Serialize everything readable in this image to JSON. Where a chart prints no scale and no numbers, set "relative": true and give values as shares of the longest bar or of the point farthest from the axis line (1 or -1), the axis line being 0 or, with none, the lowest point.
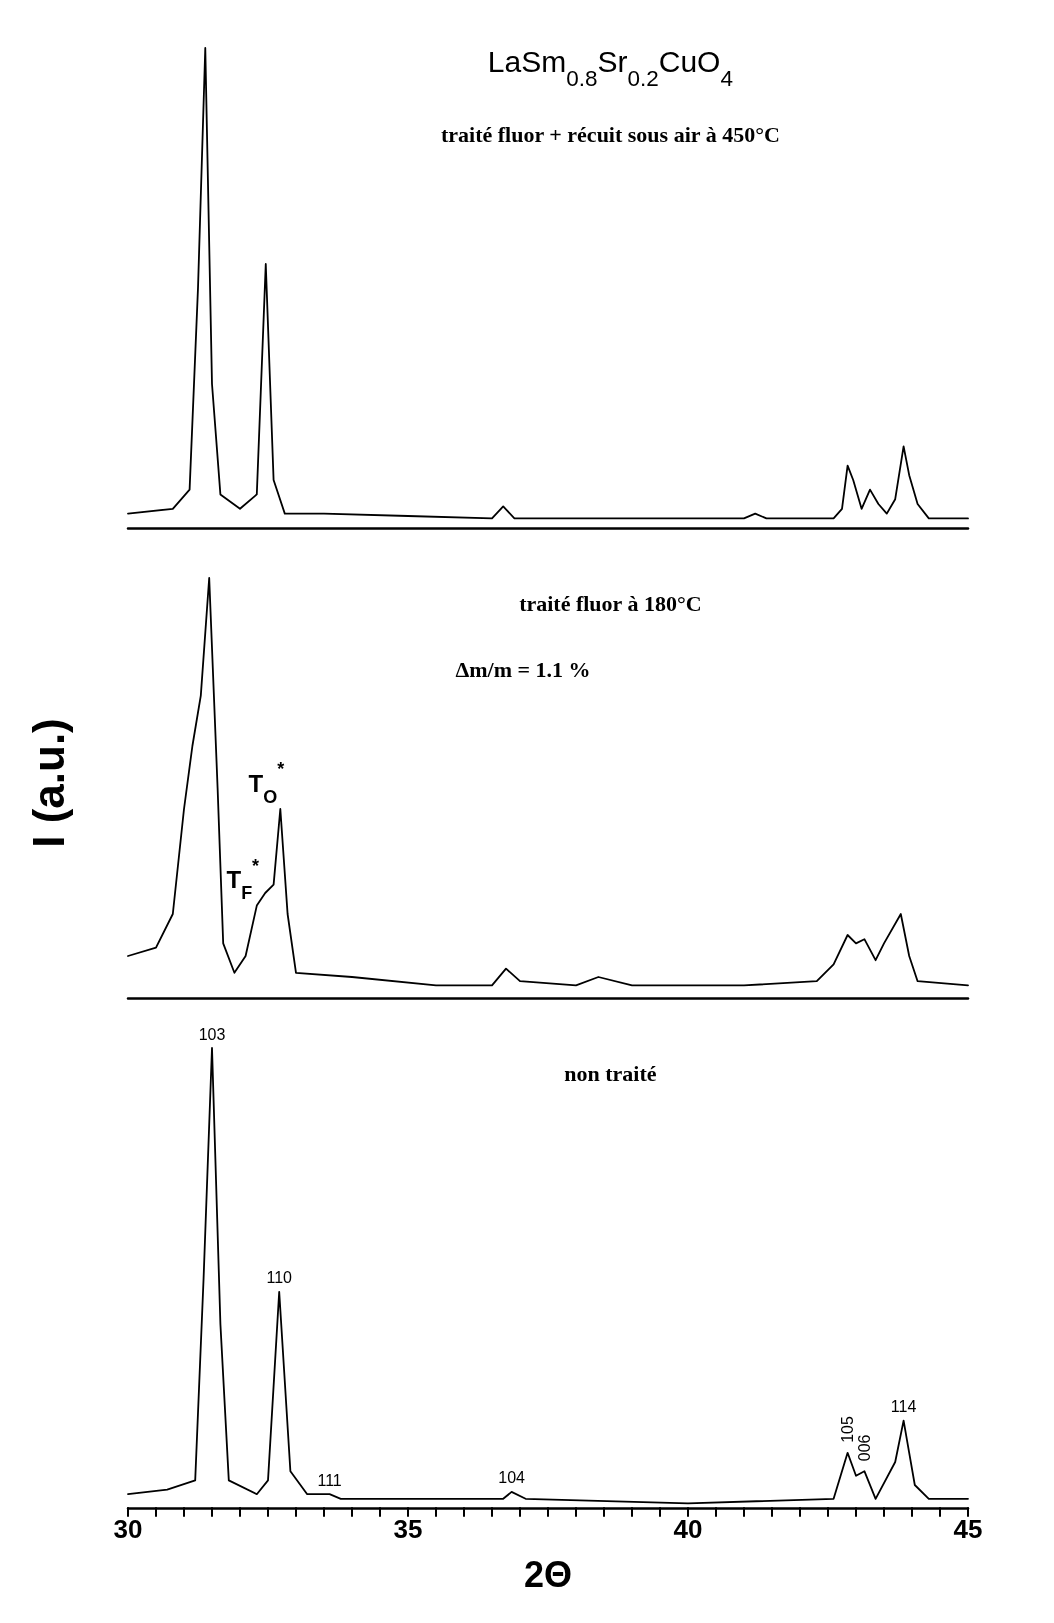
{
  "chart_data": [
    {
      "type": "line",
      "relative": true,
      "title": "LaSm$_{0.8}$Sr$_{0.2}$CuO$_{4}$",
      "subtitle": "traité fluor + récuit sous air à 450°C",
      "xlim": [
        30,
        45
      ],
      "tick_labels": false,
      "grid": false,
      "marker": "none",
      "line_style": "solid",
      "series": [
        {
          "color": "#000000",
          "x": [
            30,
            30.8,
            31.1,
            31.25,
            31.38,
            31.5,
            31.65,
            32.0,
            32.3,
            32.46,
            32.6,
            32.8,
            33.5,
            35,
            36.5,
            36.7,
            36.9,
            38,
            41,
            41.2,
            41.4,
            42.6,
            42.75,
            42.85,
            42.95,
            43.1,
            43.25,
            43.4,
            43.55,
            43.7,
            43.85,
            43.95,
            44.1,
            44.3,
            45
          ],
          "values": [
            0.03,
            0.04,
            0.08,
            0.5,
            1.0,
            0.3,
            0.07,
            0.04,
            0.07,
            0.55,
            0.1,
            0.03,
            0.03,
            0.025,
            0.02,
            0.045,
            0.02,
            0.02,
            0.02,
            0.03,
            0.02,
            0.02,
            0.04,
            0.13,
            0.1,
            0.04,
            0.08,
            0.05,
            0.03,
            0.06,
            0.17,
            0.11,
            0.05,
            0.02,
            0.02
          ]
        }
      ]
    },
    {
      "type": "line",
      "relative": true,
      "title": "traité fluor à 180°C",
      "ylabel": "I (a.u.)",
      "xlim": [
        30,
        45
      ],
      "tick_labels": false,
      "grid": false,
      "marker": "none",
      "line_style": "solid",
      "annotations": [
        "Δm/m = 1.1 %",
        {
          "text": "T$_{F}$$^{*}$",
          "x": 32.3,
          "y": 0.22
        },
        {
          "text": "T$_{O}$$^{*}$",
          "x": 32.72,
          "y": 0.45
        }
      ],
      "series": [
        {
          "color": "#000000",
          "x": [
            30,
            30.5,
            30.8,
            31.0,
            31.15,
            31.3,
            31.45,
            31.6,
            31.7,
            31.9,
            32.1,
            32.3,
            32.45,
            32.6,
            32.72,
            32.85,
            33.0,
            34,
            35.5,
            36.5,
            36.75,
            37,
            38.0,
            38.4,
            39,
            41,
            42.3,
            42.6,
            42.85,
            43.0,
            43.15,
            43.35,
            43.5,
            43.8,
            43.95,
            44.1,
            45
          ],
          "values": [
            0.1,
            0.12,
            0.2,
            0.45,
            0.6,
            0.72,
            1.0,
            0.5,
            0.13,
            0.06,
            0.1,
            0.22,
            0.25,
            0.27,
            0.45,
            0.2,
            0.06,
            0.05,
            0.03,
            0.03,
            0.07,
            0.04,
            0.03,
            0.05,
            0.03,
            0.03,
            0.04,
            0.08,
            0.15,
            0.13,
            0.14,
            0.09,
            0.13,
            0.2,
            0.1,
            0.04,
            0.03
          ]
        }
      ]
    },
    {
      "type": "line",
      "relative": true,
      "title": "non traité",
      "xlabel": "2Θ",
      "xlim": [
        30,
        45
      ],
      "tick_labels": "x",
      "grid": false,
      "marker": "none",
      "line_style": "solid",
      "xticks": [
        30,
        {
          "value": 30.5,
          "label": null
        },
        {
          "value": 31,
          "label": null
        },
        {
          "value": 31.5,
          "label": null
        },
        {
          "value": 32,
          "label": null
        },
        {
          "value": 32.5,
          "label": null
        },
        {
          "value": 33,
          "label": null
        },
        {
          "value": 33.5,
          "label": null
        },
        {
          "value": 34,
          "label": null
        },
        {
          "value": 34.5,
          "label": null
        },
        35,
        {
          "value": 35.5,
          "label": null
        },
        {
          "value": 36,
          "label": null
        },
        {
          "value": 36.5,
          "label": null
        },
        {
          "value": 37,
          "label": null
        },
        {
          "value": 37.5,
          "label": null
        },
        {
          "value": 38,
          "label": null
        },
        {
          "value": 38.5,
          "label": null
        },
        {
          "value": 39,
          "label": null
        },
        {
          "value": 39.5,
          "label": null
        },
        40,
        {
          "value": 40.5,
          "label": null
        },
        {
          "value": 41,
          "label": null
        },
        {
          "value": 41.5,
          "label": null
        },
        {
          "value": 42,
          "label": null
        },
        {
          "value": 42.5,
          "label": null
        },
        {
          "value": 43,
          "label": null
        },
        {
          "value": 43.5,
          "label": null
        },
        {
          "value": 44,
          "label": null
        },
        {
          "value": 44.5,
          "label": null
        },
        45
      ],
      "annotations": [
        {
          "text": "103",
          "x": 31.5,
          "y": 1.0
        },
        {
          "text": "110",
          "x": 32.7,
          "y": 0.47
        },
        {
          "text": "111",
          "x": 33.6,
          "y": 0.03
        },
        {
          "text": "104",
          "x": 36.85,
          "y": 0.035
        },
        {
          "text": "105",
          "x": 42.85,
          "y": 0.12
        },
        {
          "text": "006",
          "x": 43.15,
          "y": 0.08
        },
        {
          "text": "114",
          "x": 43.85,
          "y": 0.19
        }
      ],
      "series": [
        {
          "color": "#000000",
          "x": [
            30,
            30.7,
            31.2,
            31.35,
            31.5,
            31.65,
            31.8,
            32.3,
            32.5,
            32.7,
            32.9,
            33.2,
            33.6,
            33.8,
            35,
            36.7,
            36.85,
            37.1,
            40,
            42.6,
            42.85,
            43.0,
            43.15,
            43.35,
            43.7,
            43.85,
            43.95,
            44.05,
            44.3,
            45
          ],
          "values": [
            0.03,
            0.04,
            0.06,
            0.5,
            1.0,
            0.4,
            0.06,
            0.03,
            0.06,
            0.47,
            0.08,
            0.03,
            0.03,
            0.02,
            0.02,
            0.02,
            0.035,
            0.02,
            0.01,
            0.02,
            0.12,
            0.07,
            0.08,
            0.02,
            0.1,
            0.19,
            0.12,
            0.05,
            0.02,
            0.02
          ]
        }
      ]
    }
  ]
}
